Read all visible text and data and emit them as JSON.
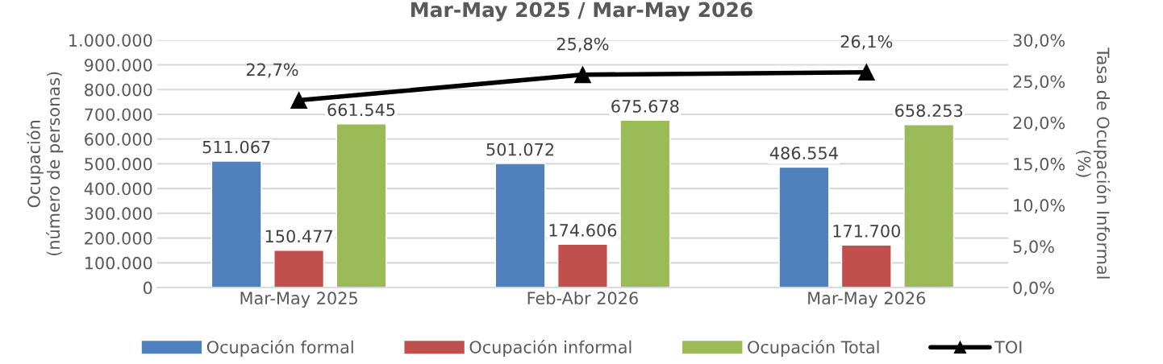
{
  "chart_data": {
    "type": "bar",
    "title": "Mar-May 2025 / Mar-May 2026",
    "ylabel": "Ocupación\n(número de personas)",
    "y2label": "Tasa de Ocupación Informal\n(%)",
    "categories": [
      "Mar-May 2025",
      "Feb-Abr 2026",
      "Mar-May 2026"
    ],
    "series": [
      {
        "name": "Ocupación formal",
        "color": "#4f81bd",
        "values": [
          511067,
          501072,
          486554
        ],
        "value_labels": [
          "511.067",
          "501.072",
          "486.554"
        ]
      },
      {
        "name": "Ocupación informal",
        "color": "#c0504d",
        "values": [
          150477,
          174606,
          171700
        ],
        "value_labels": [
          "150.477",
          "174.606",
          "171.700"
        ]
      },
      {
        "name": "Ocupación Total",
        "color": "#9bbb59",
        "values": [
          661545,
          675678,
          658253
        ],
        "value_labels": [
          "661.545",
          "675.678",
          "658.253"
        ]
      },
      {
        "name": "TOI",
        "type": "line",
        "axis": "y2",
        "color": "#000000",
        "marker": "triangle",
        "values": [
          22.7,
          25.8,
          26.1
        ],
        "value_labels": [
          "22,7%",
          "25,8%",
          "26,1%"
        ]
      }
    ],
    "ylim": [
      0,
      1000000
    ],
    "yticks": [
      {
        "value": 0,
        "label": "0"
      },
      {
        "value": 100000,
        "label": "100.000"
      },
      {
        "value": 200000,
        "label": "200.000"
      },
      {
        "value": 300000,
        "label": "300.000"
      },
      {
        "value": 400000,
        "label": "400.000"
      },
      {
        "value": 500000,
        "label": "500.000"
      },
      {
        "value": 600000,
        "label": "600.000"
      },
      {
        "value": 700000,
        "label": "700.000"
      },
      {
        "value": 800000,
        "label": "800.000"
      },
      {
        "value": 900000,
        "label": "900.000"
      },
      {
        "value": 1000000,
        "label": "1.000.000"
      }
    ],
    "y2lim": [
      0,
      30
    ],
    "y2ticks": [
      {
        "value": 0,
        "label": "0,0%"
      },
      {
        "value": 5,
        "label": "5,0%"
      },
      {
        "value": 10,
        "label": "10,0%"
      },
      {
        "value": 15,
        "label": "15,0%"
      },
      {
        "value": 20,
        "label": "20,0%"
      },
      {
        "value": 25,
        "label": "25,0%"
      },
      {
        "value": 30,
        "label": "30,0%"
      }
    ],
    "grid": "y",
    "legend": "bottom"
  }
}
